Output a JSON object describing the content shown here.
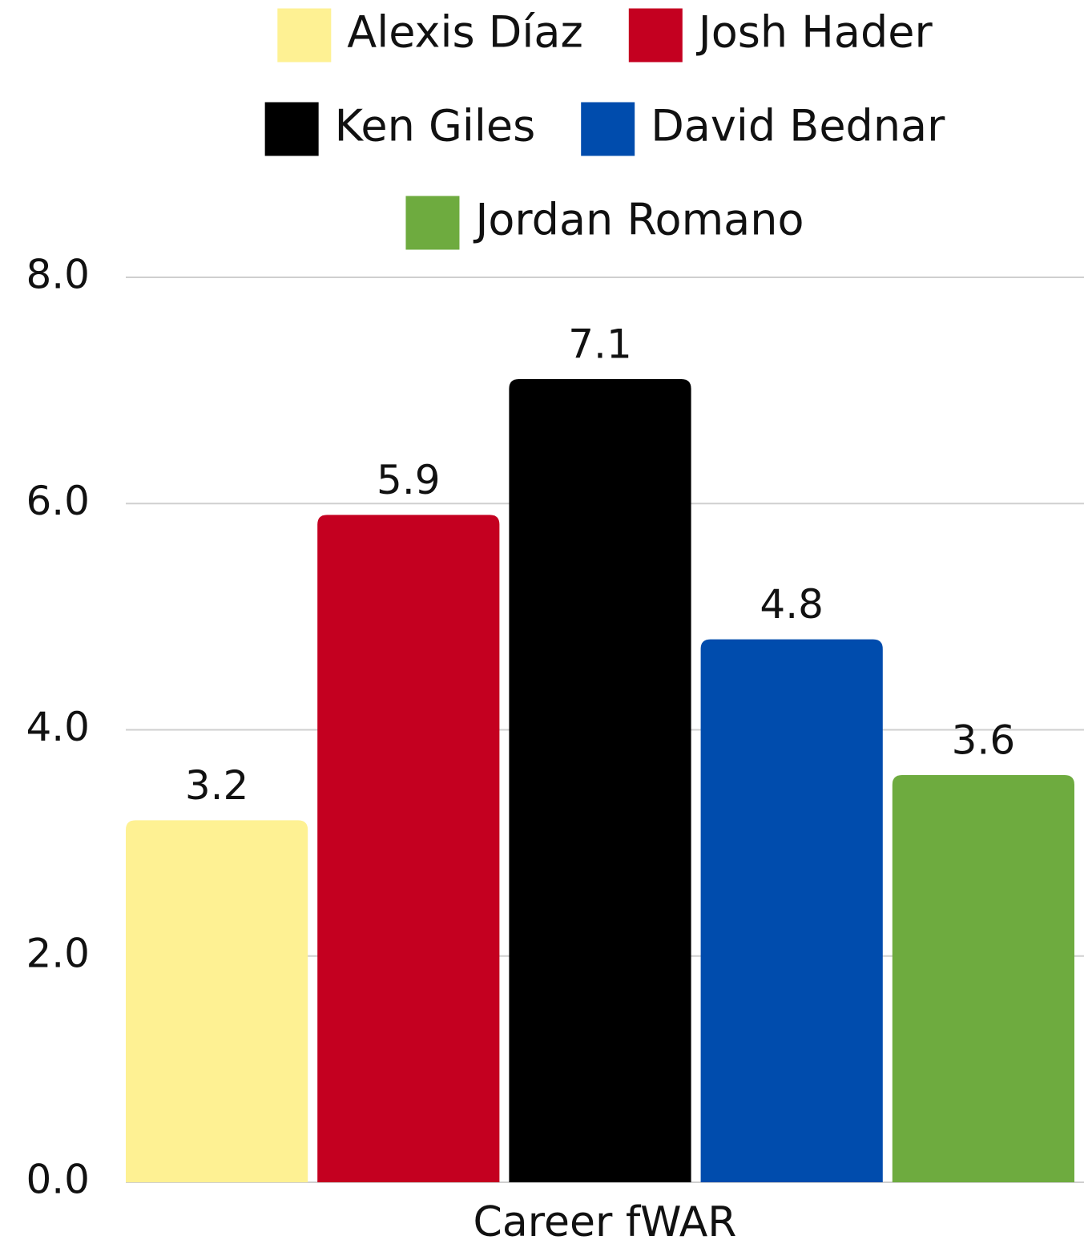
{
  "chart_data": {
    "type": "bar",
    "categories": [
      "Career fWAR"
    ],
    "series": [
      {
        "name": "Alexis Díaz",
        "color": "#fef193",
        "values": [
          3.2
        ]
      },
      {
        "name": "Josh Hader",
        "color": "#c40020",
        "values": [
          5.9
        ]
      },
      {
        "name": "Ken Giles",
        "color": "#000000",
        "values": [
          7.1
        ]
      },
      {
        "name": "David Bednar",
        "color": "#004cad",
        "values": [
          4.8
        ]
      },
      {
        "name": "Jordan Romano",
        "color": "#6eab3f",
        "values": [
          3.6
        ]
      }
    ],
    "ylim": [
      0,
      8
    ],
    "yticks": [
      {
        "value": 0,
        "label": "0.0"
      },
      {
        "value": 2,
        "label": "2.0"
      },
      {
        "value": 4,
        "label": "4.0"
      },
      {
        "value": 6,
        "label": "6.0"
      },
      {
        "value": 8,
        "label": "8.0"
      }
    ],
    "grid": true
  }
}
